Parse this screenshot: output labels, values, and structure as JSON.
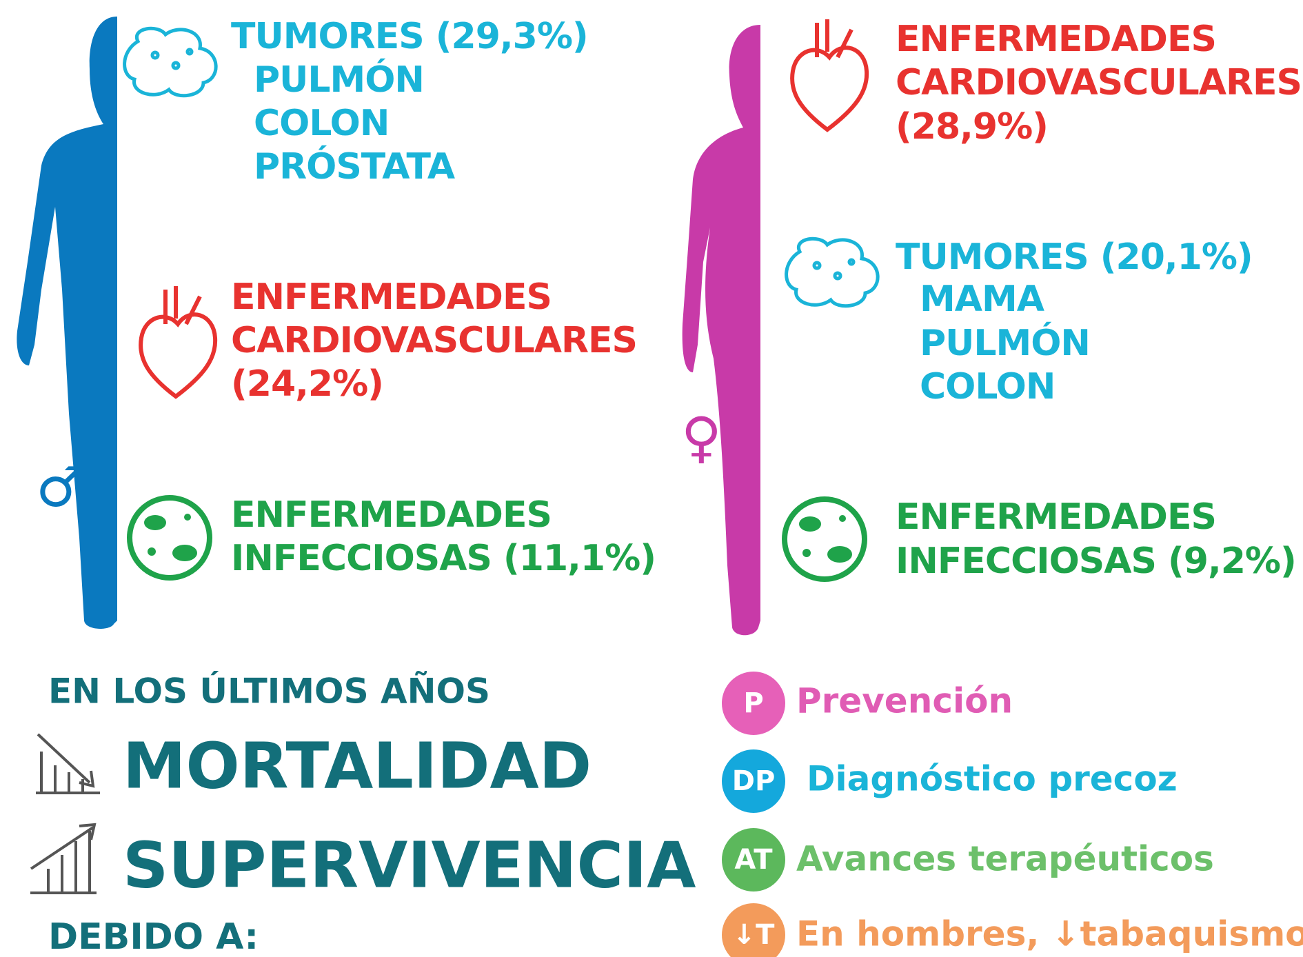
{
  "men": {
    "symbol": "♂",
    "tumors": {
      "heading": "TUMORES (29,3%)",
      "items": [
        "PULMÓN",
        "COLON",
        "PRÓSTATA"
      ]
    },
    "cardio": {
      "lines": [
        "ENFERMEDADES",
        "CARDIOVASCULARES",
        "(24,2%)"
      ]
    },
    "infectious": {
      "lines": [
        "ENFERMEDADES",
        "INFECCIOSAS (11,1%)"
      ]
    }
  },
  "women": {
    "symbol": "♀",
    "cardio": {
      "lines": [
        "ENFERMEDADES",
        "CARDIOVASCULARES",
        "(28,9%)"
      ]
    },
    "tumors": {
      "heading": "TUMORES (20,1%)",
      "items": [
        "MAMA",
        "PULMÓN",
        "COLON"
      ]
    },
    "infectious": {
      "lines": [
        "ENFERMEDADES",
        "INFECCIOSAS (9,2%)"
      ]
    }
  },
  "trend": {
    "intro": "EN LOS ÚLTIMOS AÑOS",
    "down": "MORTALIDAD",
    "up": "SUPERVIVENCIA",
    "cause": "DEBIDO A:"
  },
  "reasons": [
    {
      "badge": "P",
      "label": "Prevención"
    },
    {
      "badge": "DP",
      "label": "Diagnóstico precoz"
    },
    {
      "badge": "AT",
      "label": "Avances terapéuticos"
    },
    {
      "badge": "↓T",
      "label": "En hombres, ↓tabaquismo"
    }
  ]
}
